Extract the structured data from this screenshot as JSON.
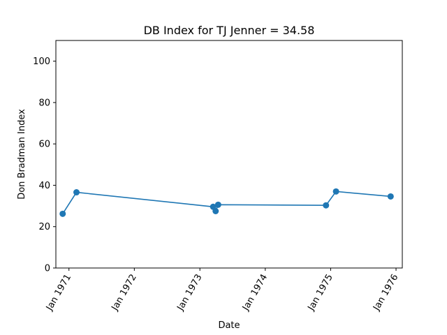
{
  "chart_data": {
    "type": "line",
    "title": "DB Index for TJ Jenner = 34.58",
    "xlabel": "Date",
    "ylabel": "Don Bradman Index",
    "ylim": [
      0,
      110
    ],
    "yticks": [
      0,
      20,
      40,
      60,
      80,
      100
    ],
    "xlim": [
      "1970-10-20",
      "1976-02-05"
    ],
    "xticks": [
      {
        "date": "1971-01-01",
        "label": "Jan 1971"
      },
      {
        "date": "1972-01-01",
        "label": "Jan 1972"
      },
      {
        "date": "1973-01-01",
        "label": "Jan 1973"
      },
      {
        "date": "1974-01-01",
        "label": "Jan 1974"
      },
      {
        "date": "1975-01-01",
        "label": "Jan 1975"
      },
      {
        "date": "1976-01-01",
        "label": "Jan 1976"
      }
    ],
    "grid": false,
    "series": [
      {
        "color": "#1f77b4",
        "points": [
          {
            "x": "1970-11-27",
            "y": 26.2
          },
          {
            "x": "1971-02-12",
            "y": 36.6
          },
          {
            "x": "1973-03-16",
            "y": 29.6
          },
          {
            "x": "1973-03-30",
            "y": 27.5
          },
          {
            "x": "1973-04-13",
            "y": 30.6
          },
          {
            "x": "1974-12-06",
            "y": 30.3
          },
          {
            "x": "1975-01-31",
            "y": 37.0
          },
          {
            "x": "1975-12-02",
            "y": 34.6
          }
        ]
      }
    ]
  }
}
